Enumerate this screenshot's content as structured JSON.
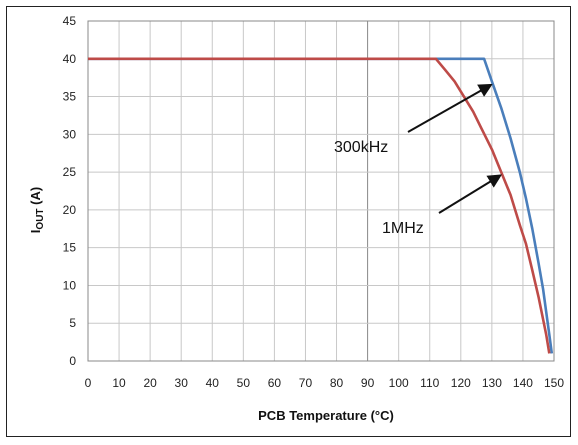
{
  "chart_data": {
    "type": "line",
    "xlabel": "PCB Temperature (°C)",
    "ylabel_main": "I",
    "ylabel_sub": "OUT",
    "ylabel_unit": " (A)",
    "xlim": [
      0,
      150
    ],
    "ylim": [
      0,
      45
    ],
    "xticks": [
      0,
      10,
      20,
      30,
      40,
      50,
      60,
      70,
      80,
      90,
      100,
      110,
      120,
      130,
      140,
      150
    ],
    "yticks": [
      0,
      5,
      10,
      15,
      20,
      25,
      30,
      35,
      40,
      45
    ],
    "grid": true,
    "series": [
      {
        "name": "300kHz",
        "color": "#4a7ebb",
        "x": [
          0,
          127.5,
          130,
          133,
          136,
          139,
          141,
          143,
          145,
          146.5,
          147.5,
          148.5,
          149.3
        ],
        "y": [
          40,
          40,
          37,
          33.5,
          29.5,
          25,
          21.5,
          17.5,
          13,
          9.5,
          6.5,
          3.5,
          1
        ]
      },
      {
        "name": "1MHz",
        "color": "#be4b48",
        "x": [
          0,
          112,
          115,
          118,
          121,
          124,
          127,
          130,
          133,
          136,
          139,
          141,
          143,
          145,
          146.5,
          147.5,
          148.5
        ],
        "y": [
          40,
          40,
          38.5,
          37,
          35,
          33,
          30.5,
          28,
          25,
          22,
          18,
          15.5,
          12,
          8.5,
          5.5,
          3.5,
          1
        ]
      }
    ],
    "annotations": [
      {
        "text": "300kHz",
        "series": "300kHz",
        "arrow_to": [
          129.5,
          36.5
        ]
      },
      {
        "text": "1MHz",
        "series": "1MHz",
        "arrow_to": [
          132.5,
          24.5
        ]
      }
    ]
  }
}
